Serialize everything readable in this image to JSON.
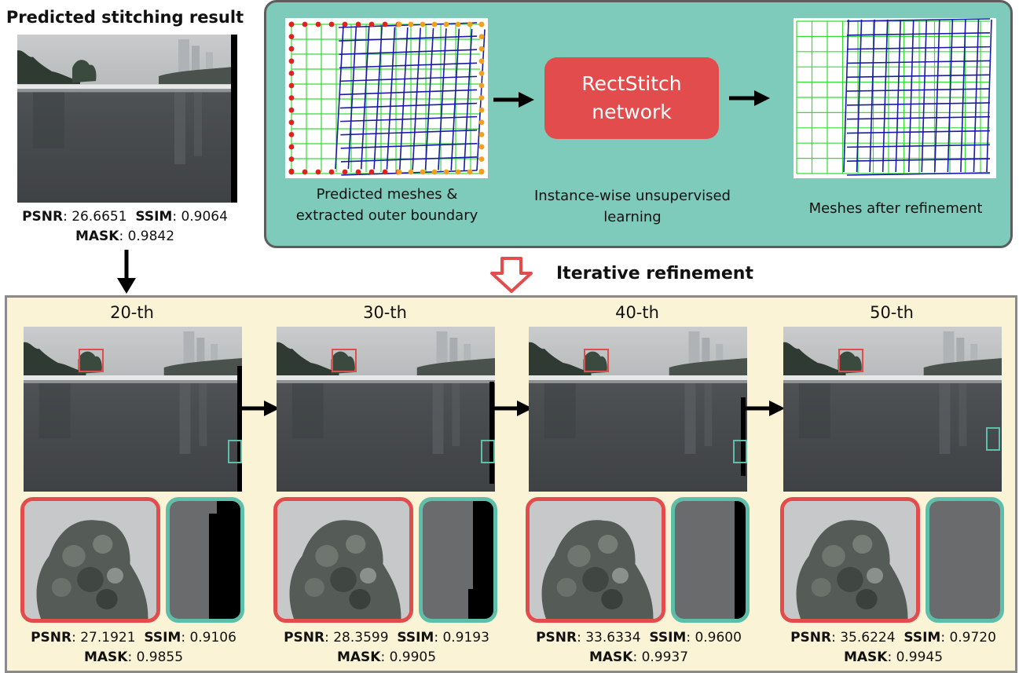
{
  "left": {
    "title": "Predicted stitching result",
    "psnr_label": "PSNR",
    "psnr_value": ": 26.6651",
    "ssim_label": "SSIM",
    "ssim_value": ": 0.9064",
    "mask_label": "MASK",
    "mask_value": ": 0.9842"
  },
  "pipeline": {
    "caption_meshes_line1": "Predicted meshes &",
    "caption_meshes_line2": "extracted outer boundary",
    "network_line1": "RectStitch",
    "network_line2": "network",
    "caption_learning_line1": "Instance-wise unsupervised",
    "caption_learning_line2": "learning",
    "caption_refined": "Meshes after refinement"
  },
  "iterative_label": "Iterative refinement",
  "steps": [
    {
      "label": "20-th",
      "psnr": ": 27.1921",
      "ssim": ": 0.9106",
      "mask": ": 0.9855"
    },
    {
      "label": "30-th",
      "psnr": ": 28.3599",
      "ssim": ": 0.9193",
      "mask": ": 0.9905"
    },
    {
      "label": "40-th",
      "psnr": ": 33.6334",
      "ssim": ": 0.9600",
      "mask": ": 0.9937"
    },
    {
      "label": "50-th",
      "psnr": ": 35.6224",
      "ssim": ": 0.9720",
      "mask": ": 0.9945"
    }
  ],
  "metric_labels": {
    "psnr": "PSNR",
    "ssim": "SSIM",
    "mask": "MASK"
  },
  "colors": {
    "teal_panel": "#7ecbbb",
    "network_red": "#e34c4c",
    "yellow_panel": "#fbf3d6",
    "mesh_green": "#33dd33",
    "mesh_blue": "#1a1aaa",
    "boundary_red": "#dd2222",
    "boundary_orange": "#f0a020",
    "zoom_teal": "#5dbfaa"
  }
}
